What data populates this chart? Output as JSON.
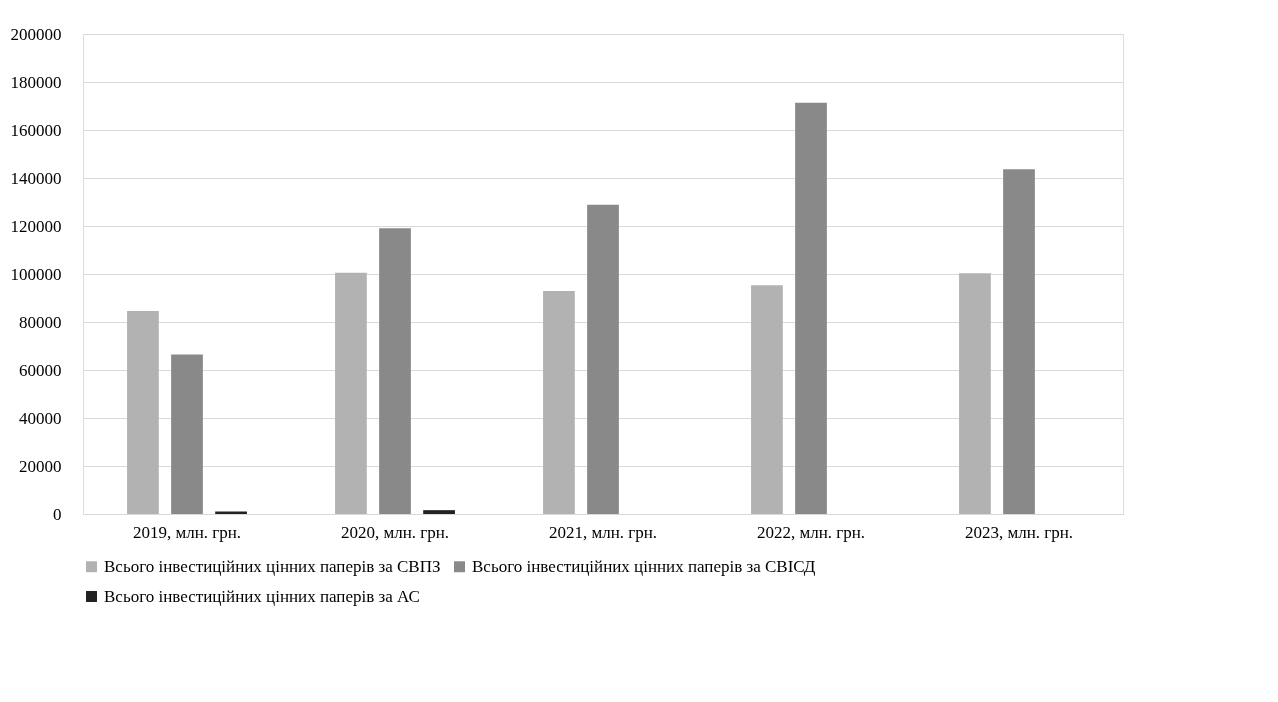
{
  "chart_data": {
    "type": "bar",
    "categories": [
      "2019, млн. грн.",
      "2020, млн. грн.",
      "2021, млн. грн.",
      "2022, млн. грн.",
      "2023, млн. грн."
    ],
    "series": [
      {
        "name": "Всього інвестиційних цінних паперів за СВПЗ",
        "color": "#b2b2b2",
        "values": [
          84600,
          100500,
          92900,
          95300,
          100300
        ]
      },
      {
        "name": "Всього інвестиційних цінних паперів за СВІСД",
        "color": "#898989",
        "values": [
          66500,
          119100,
          128900,
          171400,
          143600
        ]
      },
      {
        "name": "Всього інвестиційних цінних паперів за АС",
        "color": "#222222",
        "values": [
          1000,
          1600,
          null,
          null,
          null
        ]
      }
    ],
    "ylim": [
      0,
      200000
    ],
    "yticks": [
      0,
      20000,
      40000,
      60000,
      80000,
      100000,
      120000,
      140000,
      160000,
      180000,
      200000
    ],
    "grid": "y",
    "legend": "bottom"
  }
}
